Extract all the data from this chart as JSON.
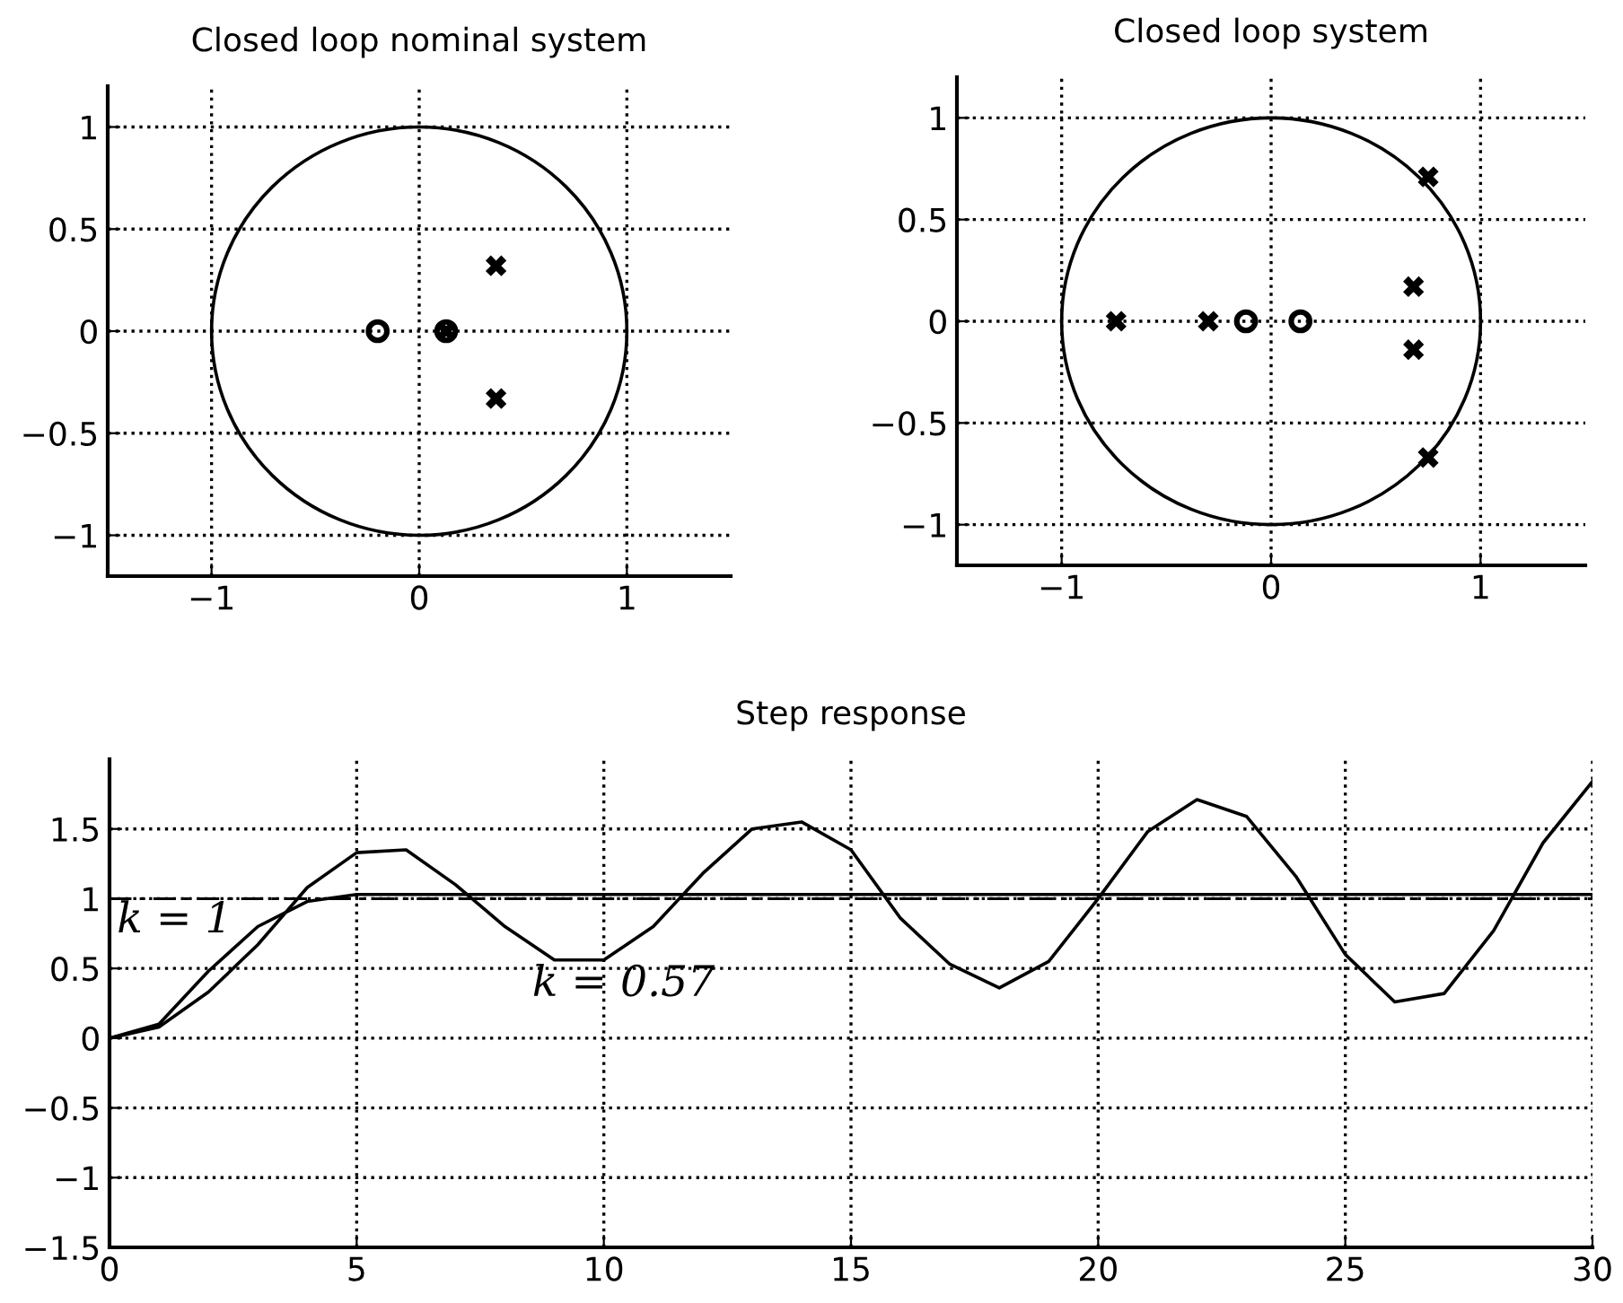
{
  "chart_data": [
    {
      "type": "scatter",
      "title": "Closed loop nominal system",
      "xlim": [
        -1.5,
        1.5
      ],
      "ylim": [
        -1.2,
        1.2
      ],
      "xticks": [
        -1,
        0,
        1
      ],
      "yticks": [
        -1,
        -0.5,
        0,
        0.5,
        1
      ],
      "grid": true,
      "series": [
        {
          "color": "#000000",
          "marker": "circle",
          "x": [
            -0.2,
            0.13
          ],
          "values": [
            0,
            0
          ]
        },
        {
          "color": "#000000",
          "marker": "cross",
          "x": [
            0.37,
            0.37,
            0.13
          ],
          "values": [
            0.32,
            -0.33,
            0
          ]
        }
      ]
    },
    {
      "type": "scatter",
      "title": "Closed loop system",
      "xlim": [
        -1.5,
        1.5
      ],
      "ylim": [
        -1.2,
        1.2
      ],
      "xticks": [
        -1,
        0,
        1
      ],
      "yticks": [
        -1,
        -0.5,
        0,
        0.5,
        1
      ],
      "grid": true,
      "series": [
        {
          "color": "#000000",
          "marker": "circle",
          "x": [
            -0.12,
            0.14
          ],
          "values": [
            0,
            0
          ]
        },
        {
          "color": "#000000",
          "marker": "cross",
          "x": [
            -0.74,
            -0.3,
            0.68,
            0.68,
            0.75,
            0.75
          ],
          "values": [
            0,
            0,
            0.17,
            -0.14,
            0.71,
            -0.67
          ]
        }
      ]
    },
    {
      "type": "line",
      "title": "Step response",
      "xlim": [
        0,
        30
      ],
      "ylim": [
        -1.5,
        2
      ],
      "xticks": [
        0,
        5,
        10,
        15,
        20,
        25,
        30
      ],
      "yticks": [
        -1.5,
        -1,
        -0.5,
        0,
        0.5,
        1,
        1.5
      ],
      "grid": true,
      "marker": "none",
      "x": [
        0,
        1,
        2,
        3,
        4,
        5,
        6,
        7,
        8,
        9,
        10,
        11,
        12,
        13,
        14,
        15,
        16,
        17,
        18,
        19,
        20,
        21,
        22,
        23,
        24,
        25,
        26,
        27,
        28,
        29,
        30
      ],
      "series": [
        {
          "color": "#000000",
          "values": [
            0,
            0.1,
            0.48,
            0.8,
            0.98,
            1.03,
            1.03,
            1.03,
            1.03,
            1.03,
            1.03,
            1.03,
            1.03,
            1.03,
            1.03,
            1.03,
            1.03,
            1.03,
            1.03,
            1.03,
            1.03,
            1.03,
            1.03,
            1.03,
            1.03,
            1.03,
            1.03,
            1.03,
            1.03,
            1.03,
            1.03
          ]
        },
        {
          "color": "#000000",
          "values": [
            0,
            0.08,
            0.33,
            0.67,
            1.08,
            1.33,
            1.35,
            1.1,
            0.8,
            0.56,
            0.56,
            0.8,
            1.18,
            1.5,
            1.55,
            1.35,
            0.86,
            0.53,
            0.36,
            0.55,
            1.0,
            1.48,
            1.71,
            1.59,
            1.16,
            0.6,
            0.26,
            0.32,
            0.77,
            1.4,
            1.84
          ]
        }
      ],
      "ref_lines": [
        {
          "axis": "y",
          "value": 1,
          "line_style": "dashed",
          "color": "#000000"
        }
      ],
      "annotations": [
        "k = 1",
        "k = 0.57"
      ]
    }
  ]
}
